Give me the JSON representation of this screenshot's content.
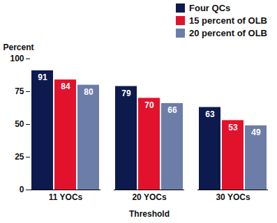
{
  "chart_data": {
    "type": "bar",
    "categories": [
      "11 YOCs",
      "20 YOCs",
      "30 YOCs"
    ],
    "series": [
      {
        "name": "Four QCs",
        "color": "#0d1a4e",
        "values": [
          91,
          79,
          63
        ]
      },
      {
        "name": "15 percent of OLB",
        "color": "#e3122c",
        "values": [
          84,
          70,
          53
        ]
      },
      {
        "name": "20 percent of OLB",
        "color": "#6c7da8",
        "values": [
          80,
          66,
          49
        ]
      }
    ],
    "xlabel": "Threshold",
    "ylabel": "Percent",
    "ylim": [
      0,
      100
    ],
    "yticks": [
      0,
      25,
      50,
      75,
      100
    ],
    "grid": false,
    "data_labels": true,
    "legend": "upper right"
  }
}
